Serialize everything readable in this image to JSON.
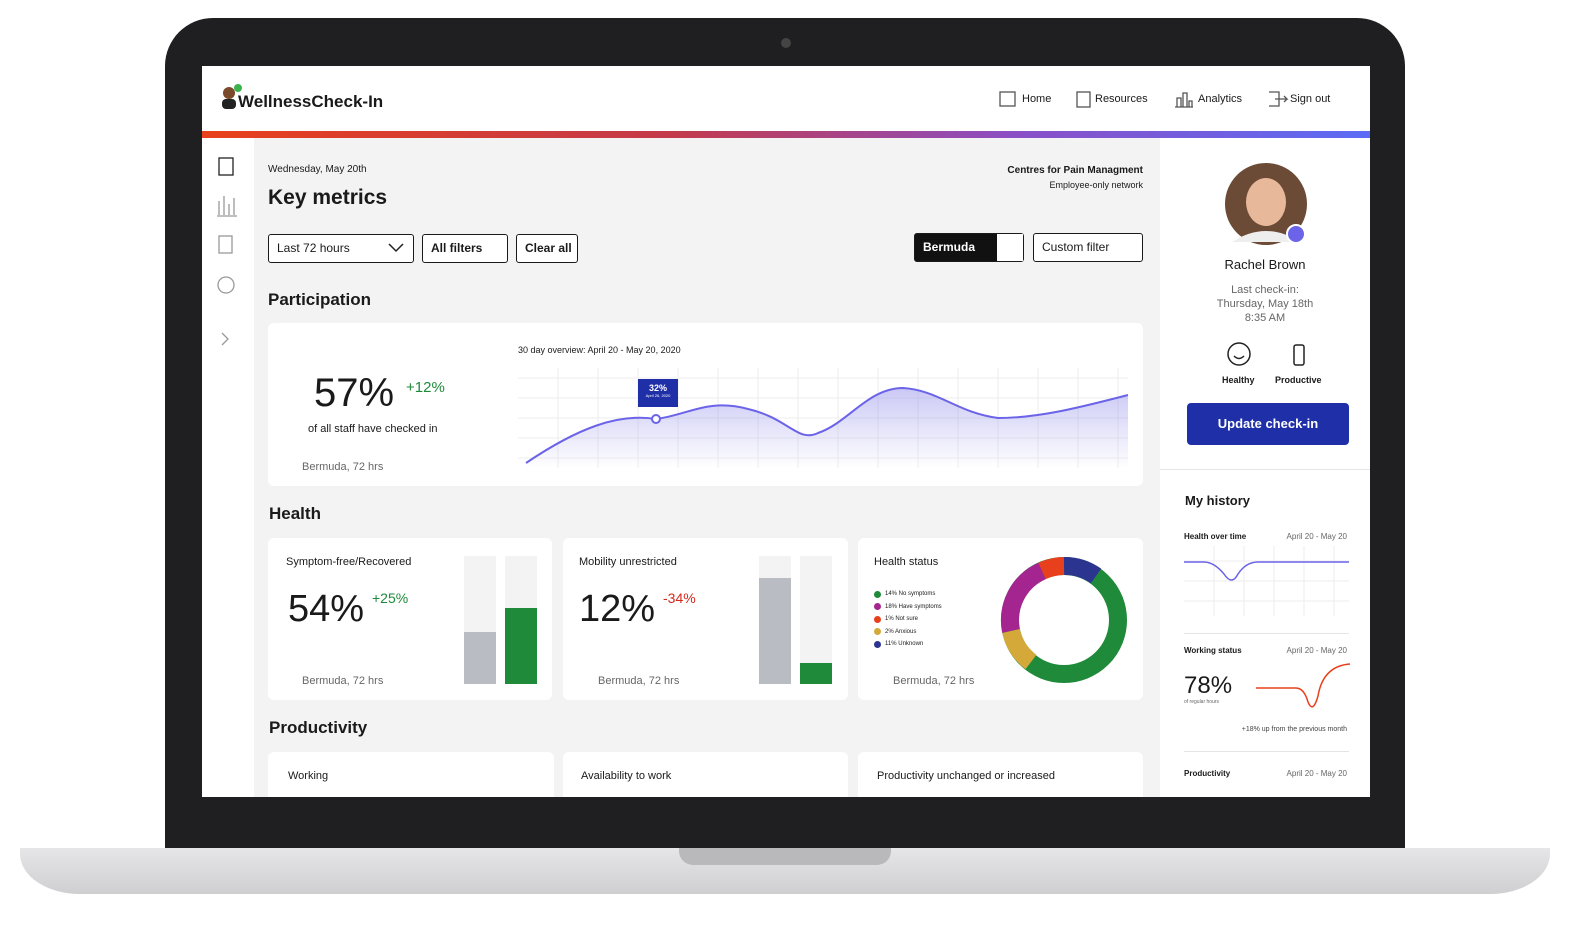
{
  "header": {
    "brand": "WellnessCheck-In",
    "nav": [
      "Home",
      "Resources",
      "Analytics",
      "Sign out"
    ]
  },
  "main": {
    "date": "Wednesday, May 20th",
    "title": "Key metrics",
    "org": "Centres for Pain Managment",
    "network": "Employee-only network",
    "filters": [
      "Last 72 hours",
      "All filters",
      "Clear all"
    ],
    "location": "Bermuda",
    "custom_filter": "Custom filter"
  },
  "participation": {
    "heading": "Participation",
    "value": "57%",
    "change": "+12%",
    "caption": "of all staff have checked in",
    "filter": "Bermuda, 72 hrs",
    "chart_title": "30 day overview: April 20 - May 20, 2020",
    "tooltip_value": "32%",
    "tooltip_date": "April 26, 2020"
  },
  "health": {
    "heading": "Health",
    "cards": [
      {
        "title": "Symptom-free/Recovered",
        "value": "54%",
        "change": "+25%",
        "filter": "Bermuda, 72 hrs"
      },
      {
        "title": "Mobility unrestricted",
        "value": "12%",
        "change": "-34%",
        "filter": "Bermuda, 72 hrs"
      },
      {
        "title": "Health status",
        "legend": [
          "14% No symptoms",
          "18% Have symptoms",
          "1% Not sure",
          "2% Anxious",
          "11% Unknown"
        ],
        "filter": "Bermuda, 72 hrs"
      }
    ]
  },
  "productivity": {
    "heading": "Productivity",
    "cards": [
      "Working",
      "Availability to work",
      "Productivity unchanged or increased"
    ]
  },
  "profile": {
    "name": "Rachel Brown",
    "last_checkin_label": "Last check-in:",
    "last_checkin_date": "Thursday, May 18th",
    "last_checkin_time": "8:35 AM",
    "statuses": [
      "Healthy",
      "Productive"
    ],
    "button": "Update check-in"
  },
  "history": {
    "heading": "My history",
    "items": [
      {
        "title": "Health over time",
        "range": "April 20 - May 20"
      },
      {
        "title": "Working status",
        "range": "April 20 - May 20",
        "value": "78%",
        "caption": "of regular hours",
        "note": "+18% up from the previous month"
      },
      {
        "title": "Productivity",
        "range": "April 20 - May 20"
      }
    ]
  }
}
